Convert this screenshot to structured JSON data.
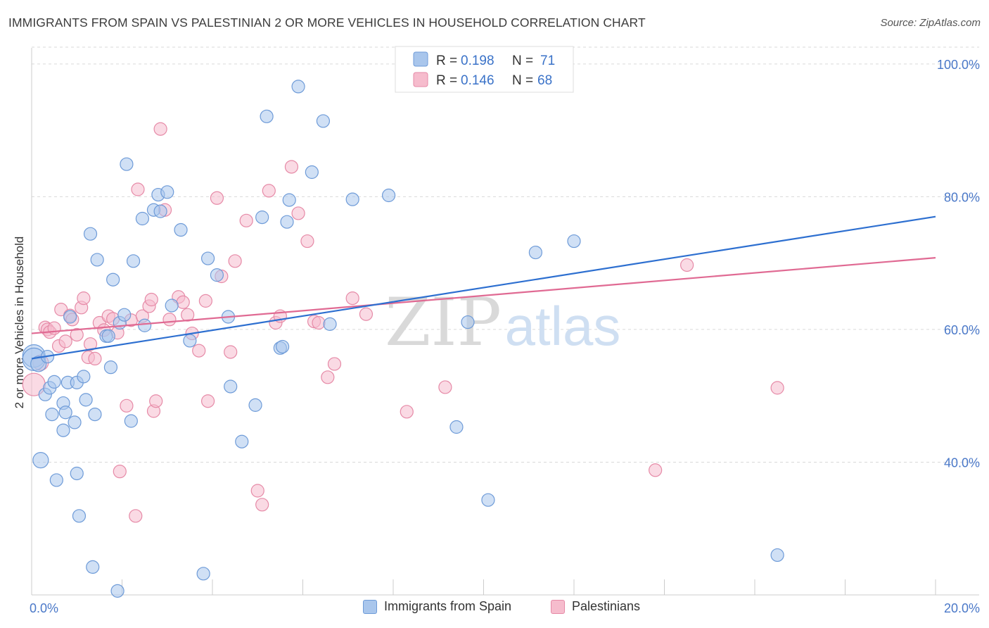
{
  "title": "IMMIGRANTS FROM SPAIN VS PALESTINIAN 2 OR MORE VEHICLES IN HOUSEHOLD CORRELATION CHART",
  "source": "Source: ZipAtlas.com",
  "watermark": {
    "zip": "ZIP",
    "atlas": "atlas"
  },
  "colors": {
    "blue_fill": "#a9c6ec",
    "blue_stroke": "#6e9bd8",
    "blue_line": "#2d6fd0",
    "pink_fill": "#f6bccd",
    "pink_stroke": "#e68aa7",
    "pink_line": "#e06a93",
    "value_text": "#3a72c8",
    "grid": "#d9d9d9"
  },
  "legend": {
    "rows": [
      {
        "r_label": "R =",
        "r_value": "0.198",
        "n_label": "N =",
        "n_value": "71"
      },
      {
        "r_label": "R =",
        "r_value": "0.146",
        "n_label": "N =",
        "n_value": "68"
      }
    ]
  },
  "bottom_legend": {
    "series1": "Immigrants from Spain",
    "series2": "Palestinians"
  },
  "chart_data": {
    "type": "scatter",
    "xlabel": "",
    "ylabel": "2 or more Vehicles in Household",
    "xlim": [
      0,
      20
    ],
    "ylim": [
      20,
      102
    ],
    "x_tick_labels": [
      {
        "value": 0,
        "label": "0.0%"
      },
      {
        "value": 20,
        "label": "20.0%"
      }
    ],
    "y_tick_labels": [
      {
        "value": 40,
        "label": "40.0%"
      },
      {
        "value": 60,
        "label": "60.0%"
      },
      {
        "value": 80,
        "label": "80.0%"
      },
      {
        "value": 100,
        "label": "100.0%"
      }
    ],
    "grid": true,
    "legend_placement": "top-center",
    "series": [
      {
        "name": "Immigrants from Spain",
        "r": 0.198,
        "n": 71,
        "trend": {
          "x": [
            0,
            20
          ],
          "y": [
            55.6,
            77.0
          ]
        },
        "points": [
          [
            0.05,
            56.0
          ],
          [
            0.05,
            55.5
          ],
          [
            0.15,
            54.8
          ],
          [
            0.2,
            40.3
          ],
          [
            0.35,
            55.9
          ],
          [
            0.3,
            50.2
          ],
          [
            0.4,
            51.2
          ],
          [
            0.45,
            47.2
          ],
          [
            0.5,
            52.1
          ],
          [
            0.55,
            37.3
          ],
          [
            0.7,
            48.9
          ],
          [
            0.7,
            44.8
          ],
          [
            0.75,
            47.5
          ],
          [
            0.8,
            52.0
          ],
          [
            0.85,
            61.9
          ],
          [
            0.95,
            46.0
          ],
          [
            1.0,
            38.3
          ],
          [
            1.0,
            52.0
          ],
          [
            1.05,
            31.9
          ],
          [
            1.15,
            52.9
          ],
          [
            1.2,
            49.4
          ],
          [
            1.3,
            74.4
          ],
          [
            1.35,
            24.2
          ],
          [
            1.4,
            47.2
          ],
          [
            1.45,
            70.5
          ],
          [
            1.65,
            59.0
          ],
          [
            1.7,
            59.0
          ],
          [
            1.75,
            54.3
          ],
          [
            1.8,
            67.5
          ],
          [
            1.9,
            20.6
          ],
          [
            1.95,
            61.0
          ],
          [
            2.05,
            62.2
          ],
          [
            2.1,
            84.9
          ],
          [
            2.2,
            46.2
          ],
          [
            2.25,
            70.3
          ],
          [
            2.45,
            76.7
          ],
          [
            2.5,
            60.6
          ],
          [
            2.7,
            78.0
          ],
          [
            2.8,
            80.3
          ],
          [
            2.85,
            77.8
          ],
          [
            3.0,
            80.7
          ],
          [
            3.1,
            63.6
          ],
          [
            3.3,
            75.0
          ],
          [
            3.5,
            58.3
          ],
          [
            3.8,
            23.2
          ],
          [
            3.9,
            70.7
          ],
          [
            4.1,
            68.2
          ],
          [
            4.35,
            61.9
          ],
          [
            4.4,
            51.4
          ],
          [
            4.65,
            43.1
          ],
          [
            4.95,
            48.6
          ],
          [
            5.1,
            76.9
          ],
          [
            5.2,
            92.1
          ],
          [
            5.5,
            57.2
          ],
          [
            5.55,
            57.4
          ],
          [
            5.65,
            76.2
          ],
          [
            5.7,
            79.5
          ],
          [
            5.9,
            96.6
          ],
          [
            6.2,
            83.7
          ],
          [
            6.45,
            91.4
          ],
          [
            6.6,
            60.8
          ],
          [
            7.1,
            79.6
          ],
          [
            7.9,
            80.2
          ],
          [
            8.2,
            101.5
          ],
          [
            8.5,
            96.8
          ],
          [
            9.4,
            45.3
          ],
          [
            9.65,
            61.1
          ],
          [
            10.1,
            34.3
          ],
          [
            11.15,
            71.6
          ],
          [
            12.0,
            73.3
          ],
          [
            16.5,
            26.0
          ]
        ]
      },
      {
        "name": "Palestinians",
        "r": 0.146,
        "n": 68,
        "trend": {
          "x": [
            0,
            20
          ],
          "y": [
            59.4,
            70.8
          ]
        },
        "points": [
          [
            0.05,
            51.7
          ],
          [
            0.2,
            55.0
          ],
          [
            0.3,
            60.3
          ],
          [
            0.35,
            60.0
          ],
          [
            0.4,
            59.6
          ],
          [
            0.5,
            60.2
          ],
          [
            0.6,
            57.5
          ],
          [
            0.65,
            63.0
          ],
          [
            0.75,
            58.2
          ],
          [
            0.85,
            62.1
          ],
          [
            0.9,
            61.5
          ],
          [
            1.0,
            59.2
          ],
          [
            1.1,
            63.3
          ],
          [
            1.15,
            64.7
          ],
          [
            1.25,
            55.8
          ],
          [
            1.3,
            57.8
          ],
          [
            1.4,
            55.6
          ],
          [
            1.5,
            61.0
          ],
          [
            1.6,
            59.9
          ],
          [
            1.7,
            62.0
          ],
          [
            1.8,
            61.6
          ],
          [
            1.9,
            59.5
          ],
          [
            1.95,
            38.6
          ],
          [
            2.1,
            48.5
          ],
          [
            2.2,
            61.4
          ],
          [
            2.3,
            31.9
          ],
          [
            2.35,
            81.1
          ],
          [
            2.45,
            62.0
          ],
          [
            2.6,
            63.5
          ],
          [
            2.65,
            64.5
          ],
          [
            2.7,
            47.7
          ],
          [
            2.75,
            49.2
          ],
          [
            2.85,
            90.2
          ],
          [
            2.95,
            78.0
          ],
          [
            3.05,
            61.5
          ],
          [
            3.25,
            64.9
          ],
          [
            3.35,
            64.1
          ],
          [
            3.45,
            62.2
          ],
          [
            3.55,
            59.4
          ],
          [
            3.7,
            56.8
          ],
          [
            3.85,
            64.3
          ],
          [
            3.9,
            49.2
          ],
          [
            4.1,
            79.8
          ],
          [
            4.2,
            68.0
          ],
          [
            4.4,
            56.6
          ],
          [
            4.5,
            70.3
          ],
          [
            4.75,
            76.4
          ],
          [
            5.0,
            35.7
          ],
          [
            5.1,
            33.6
          ],
          [
            5.25,
            80.9
          ],
          [
            5.4,
            61.0
          ],
          [
            5.5,
            62.0
          ],
          [
            5.75,
            84.5
          ],
          [
            5.9,
            77.5
          ],
          [
            6.1,
            73.3
          ],
          [
            6.25,
            61.2
          ],
          [
            6.35,
            61.0
          ],
          [
            6.55,
            52.8
          ],
          [
            6.7,
            54.8
          ],
          [
            7.1,
            64.7
          ],
          [
            7.4,
            62.3
          ],
          [
            8.3,
            47.6
          ],
          [
            9.15,
            51.3
          ],
          [
            11.55,
            100.0
          ],
          [
            11.6,
            101.5
          ],
          [
            13.8,
            38.8
          ],
          [
            14.5,
            69.7
          ],
          [
            16.5,
            51.2
          ]
        ]
      }
    ]
  }
}
